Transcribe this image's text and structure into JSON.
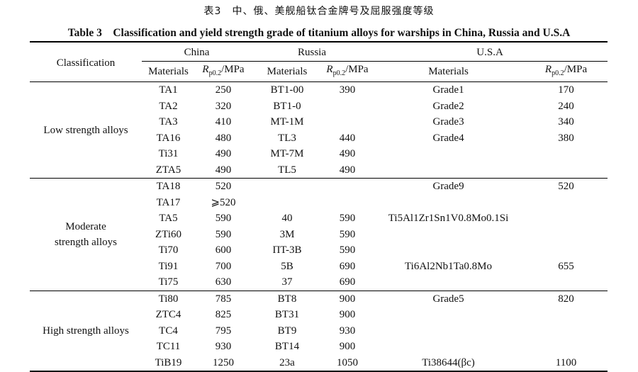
{
  "title_cn": "表3　中、俄、美舰船钛合金牌号及屈服强度等级",
  "title_en": "Table 3　Classification and yield strength grade of titanium alloys for warships in China, Russia and U.S.A",
  "headers": {
    "classification": "Classification",
    "china": "China",
    "russia": "Russia",
    "usa": "U.S.A",
    "materials": "Materials",
    "rp_symbol": "R",
    "rp_sub": "p0.2",
    "rp_unit": "/MPa"
  },
  "groups": [
    {
      "label": "Low strength alloys",
      "rows": [
        [
          "TA1",
          "250",
          "BT1-00",
          "390",
          "Grade1",
          "170"
        ],
        [
          "TA2",
          "320",
          "BT1-0",
          "",
          "Grade2",
          "240"
        ],
        [
          "TA3",
          "410",
          "MT-1M",
          "",
          "Grade3",
          "340"
        ],
        [
          "TA16",
          "480",
          "TL3",
          "440",
          "Grade4",
          "380"
        ],
        [
          "Ti31",
          "490",
          "MT-7M",
          "490",
          "",
          ""
        ],
        [
          "ZTA5",
          "490",
          "TL5",
          "490",
          "",
          ""
        ]
      ]
    },
    {
      "label": "Moderate strength alloys",
      "rows": [
        [
          "TA18",
          "520",
          "",
          "",
          "Grade9",
          "520"
        ],
        [
          "TA17",
          "⩾520",
          "",
          "",
          "",
          ""
        ],
        [
          "TA5",
          "590",
          "40",
          "590",
          "Ti5Al1Zr1Sn1V0.8Mo0.1Si",
          ""
        ],
        [
          "ZTi60",
          "590",
          "3M",
          "590",
          "",
          ""
        ],
        [
          "Ti70",
          "600",
          "ПT-3B",
          "590",
          "",
          ""
        ],
        [
          "Ti91",
          "700",
          "5B",
          "690",
          "Ti6Al2Nb1Ta0.8Mo",
          "655"
        ],
        [
          "Ti75",
          "630",
          "37",
          "690",
          "",
          ""
        ]
      ]
    },
    {
      "label": "High strength alloys",
      "rows": [
        [
          "Ti80",
          "785",
          "BT8",
          "900",
          "Grade5",
          "820"
        ],
        [
          "ZTC4",
          "825",
          "BT31",
          "900",
          "",
          ""
        ],
        [
          "TC4",
          "795",
          "BT9",
          "930",
          "",
          ""
        ],
        [
          "TC11",
          "930",
          "BT14",
          "900",
          "",
          ""
        ],
        [
          "TiB19",
          "1250",
          "23a",
          "1050",
          "Ti38644(βc)",
          "1100"
        ]
      ]
    }
  ]
}
